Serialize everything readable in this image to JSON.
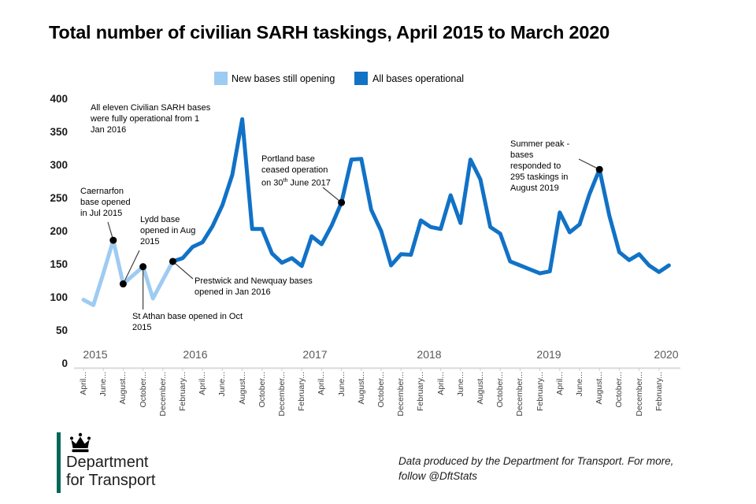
{
  "title": "Total number of civilian SARH taskings, April 2015 to March 2020",
  "legend": {
    "items": [
      {
        "label": "New bases still opening",
        "color": "#9ECBF2"
      },
      {
        "label": "All bases operational",
        "color": "#1172C6"
      }
    ]
  },
  "chart_data": {
    "type": "line",
    "title": "Total number of civilian SARH taskings, April 2015 to March 2020",
    "x_start": "April 2015",
    "x_end": "March 2020",
    "ylim": [
      0,
      400
    ],
    "grid": "off",
    "legend_position": "top",
    "y_ticks": [
      0,
      50,
      100,
      150,
      200,
      250,
      300,
      350,
      400
    ],
    "x_tick_labels": [
      "April...",
      "June...",
      "August...",
      "October...",
      "December...",
      "February...",
      "April...",
      "June...",
      "August...",
      "October...",
      "December...",
      "February...",
      "April...",
      "June...",
      "August...",
      "October...",
      "December...",
      "February...",
      "April...",
      "June...",
      "August...",
      "October...",
      "December...",
      "February...",
      "April...",
      "June...",
      "August...",
      "October...",
      "December...",
      "February..."
    ],
    "year_labels": [
      "2015",
      "2016",
      "2017",
      "2018",
      "2019",
      "2020"
    ],
    "series": [
      {
        "name": "New bases still opening",
        "color": "#9ECBF2",
        "start_month_index": 0,
        "values": [
          98,
          90,
          138,
          188,
          122,
          135,
          148,
          100,
          128,
          156
        ]
      },
      {
        "name": "All bases operational",
        "color": "#1172C6",
        "start_month_index": 9,
        "values": [
          156,
          161,
          178,
          185,
          209,
          241,
          287,
          371,
          205,
          205,
          168,
          154,
          161,
          149,
          194,
          182,
          210,
          245,
          310,
          311,
          234,
          202,
          150,
          167,
          166,
          218,
          208,
          205,
          256,
          214,
          310,
          280,
          208,
          198,
          156,
          150,
          144,
          138,
          141,
          230,
          200,
          212,
          258,
          295,
          225,
          170,
          158,
          167,
          150,
          140,
          150
        ]
      }
    ],
    "annotations": [
      {
        "id": "fully-operational",
        "lines": [
          "All eleven Civilian  SARH bases",
          "were fully operational from 1",
          "Jan 2016"
        ]
      },
      {
        "id": "caernarfon",
        "lines": [
          "Caernarfon",
          "base opened",
          "in Jul 2015"
        ],
        "dot": {
          "month_index": 3,
          "value": 188
        }
      },
      {
        "id": "lydd",
        "lines": [
          "Lydd base",
          "opened in Aug",
          "2015"
        ],
        "dot": {
          "month_index": 4,
          "value": 122
        }
      },
      {
        "id": "st-athan",
        "lines": [
          "St Athan base opened in Oct",
          "2015"
        ],
        "dot": {
          "month_index": 6,
          "value": 148
        }
      },
      {
        "id": "prestwick",
        "lines": [
          "Prestwick and Newquay bases",
          "opened in Jan 2016"
        ],
        "dot": {
          "month_index": 9,
          "value": 156
        }
      },
      {
        "id": "portland",
        "lines": [
          "Portland base",
          "ceased operation",
          {
            "pre": "on 30",
            "sup": "th",
            "post": " June 2017"
          }
        ],
        "dot": {
          "month_index": 26,
          "value": 245
        }
      },
      {
        "id": "summer-peak",
        "lines": [
          "Summer peak -",
          "bases",
          "responded to",
          "295 taskings in",
          "August 2019"
        ],
        "dot": {
          "month_index": 52,
          "value": 295
        }
      }
    ]
  },
  "footer": {
    "logo": {
      "line1": "Department",
      "line2": "for Transport",
      "accent_color": "#00685A"
    },
    "note_lines": [
      "Data produced by the Department for Transport. For more,",
      "follow @DftStats"
    ]
  }
}
